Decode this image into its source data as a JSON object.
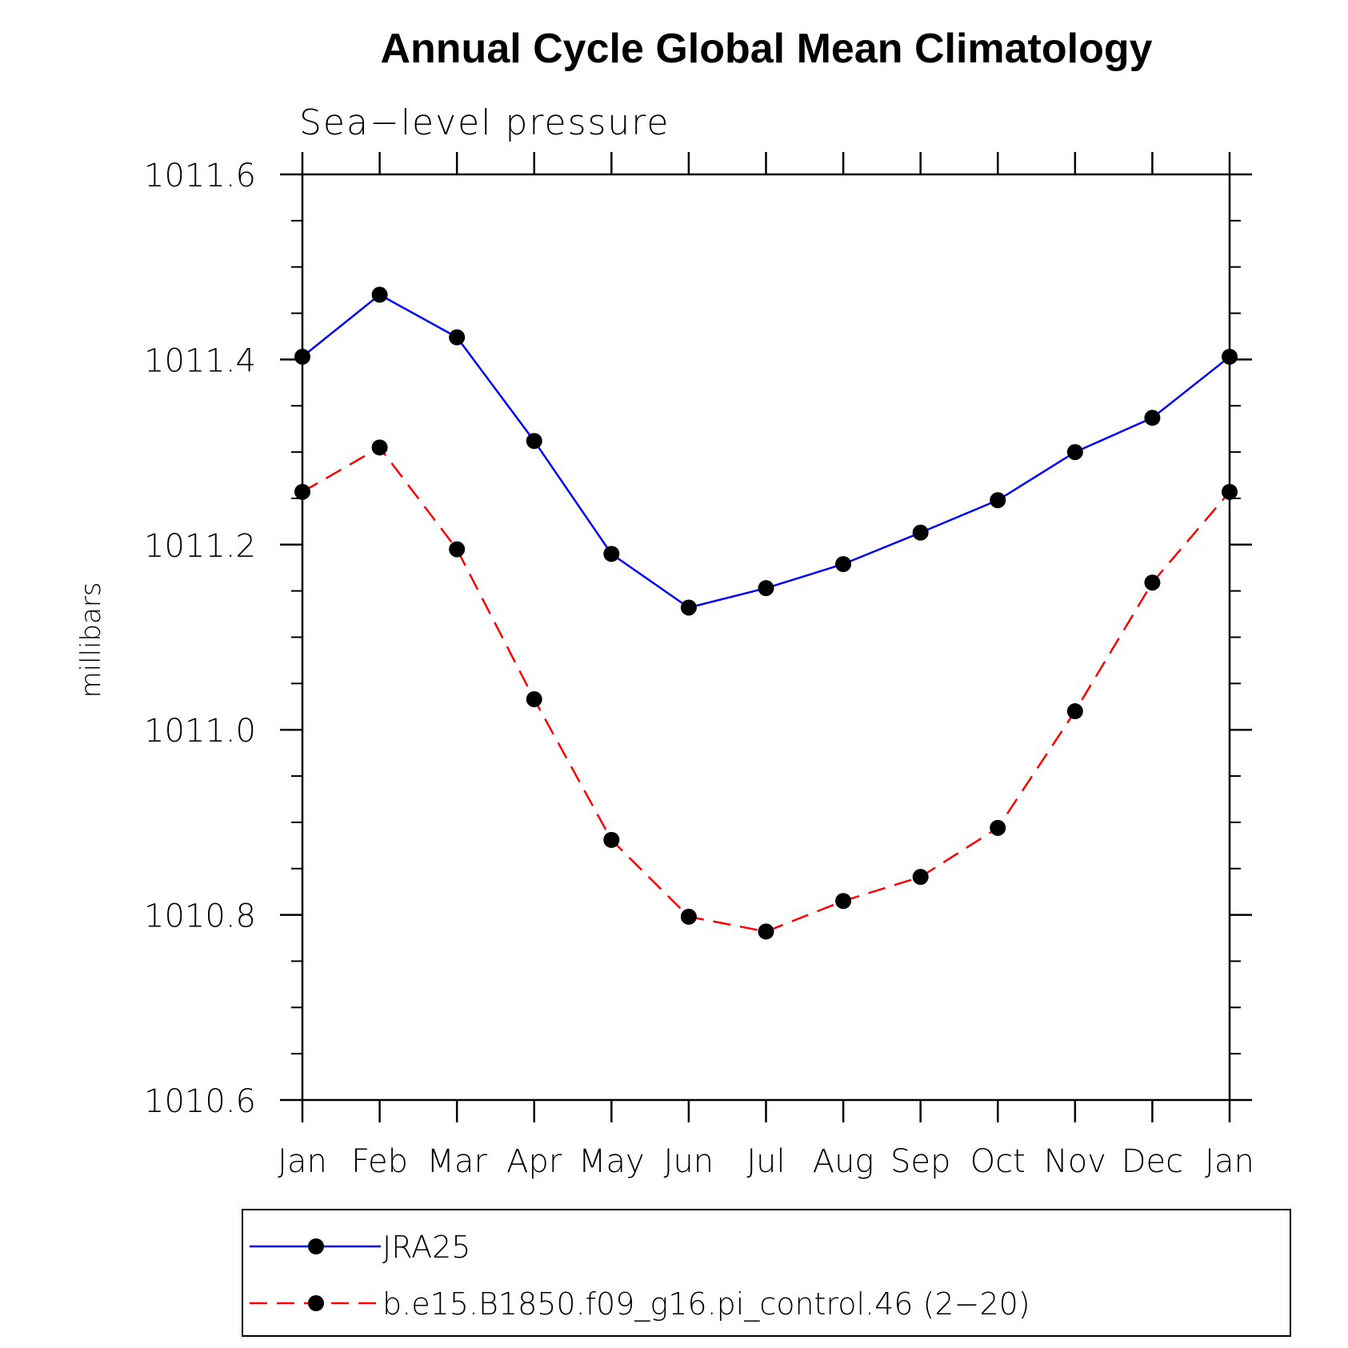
{
  "chart_data": {
    "type": "line",
    "title": "Annual Cycle Global Mean Climatology",
    "subtitle": "Sea−level pressure",
    "xlabel": "",
    "ylabel": "millibars",
    "categories": [
      "Jan",
      "Feb",
      "Mar",
      "Apr",
      "May",
      "Jun",
      "Jul",
      "Aug",
      "Sep",
      "Oct",
      "Nov",
      "Dec",
      "Jan"
    ],
    "ylim": [
      1010.6,
      1011.6
    ],
    "yticks": [
      1010.6,
      1010.8,
      1011.0,
      1011.2,
      1011.4,
      1011.6
    ],
    "ytick_labels": [
      "1010.6",
      "1010.8",
      "1011.0",
      "1011.2",
      "1011.4",
      "1011.6"
    ],
    "series": [
      {
        "name": "JRA25",
        "color": "#0000ff",
        "dash": "solid",
        "values": [
          1011.403,
          1011.47,
          1011.424,
          1011.312,
          1011.19,
          1011.132,
          1011.153,
          1011.179,
          1011.213,
          1011.248,
          1011.3,
          1011.337,
          1011.403
        ]
      },
      {
        "name": "b.e15.B1850.f09_g16.pi_control.46 (2−20)",
        "color": "#ff0000",
        "dash": "dashed",
        "values": [
          1011.257,
          1011.305,
          1011.195,
          1011.033,
          1010.881,
          1010.798,
          1010.782,
          1010.815,
          1010.841,
          1010.894,
          1011.02,
          1011.159,
          1011.257
        ]
      }
    ],
    "legend": {
      "entries": [
        "JRA25",
        "b.e15.B1850.f09_g16.pi_control.46 (2−20)"
      ],
      "position": "bottom"
    },
    "grid": false
  }
}
